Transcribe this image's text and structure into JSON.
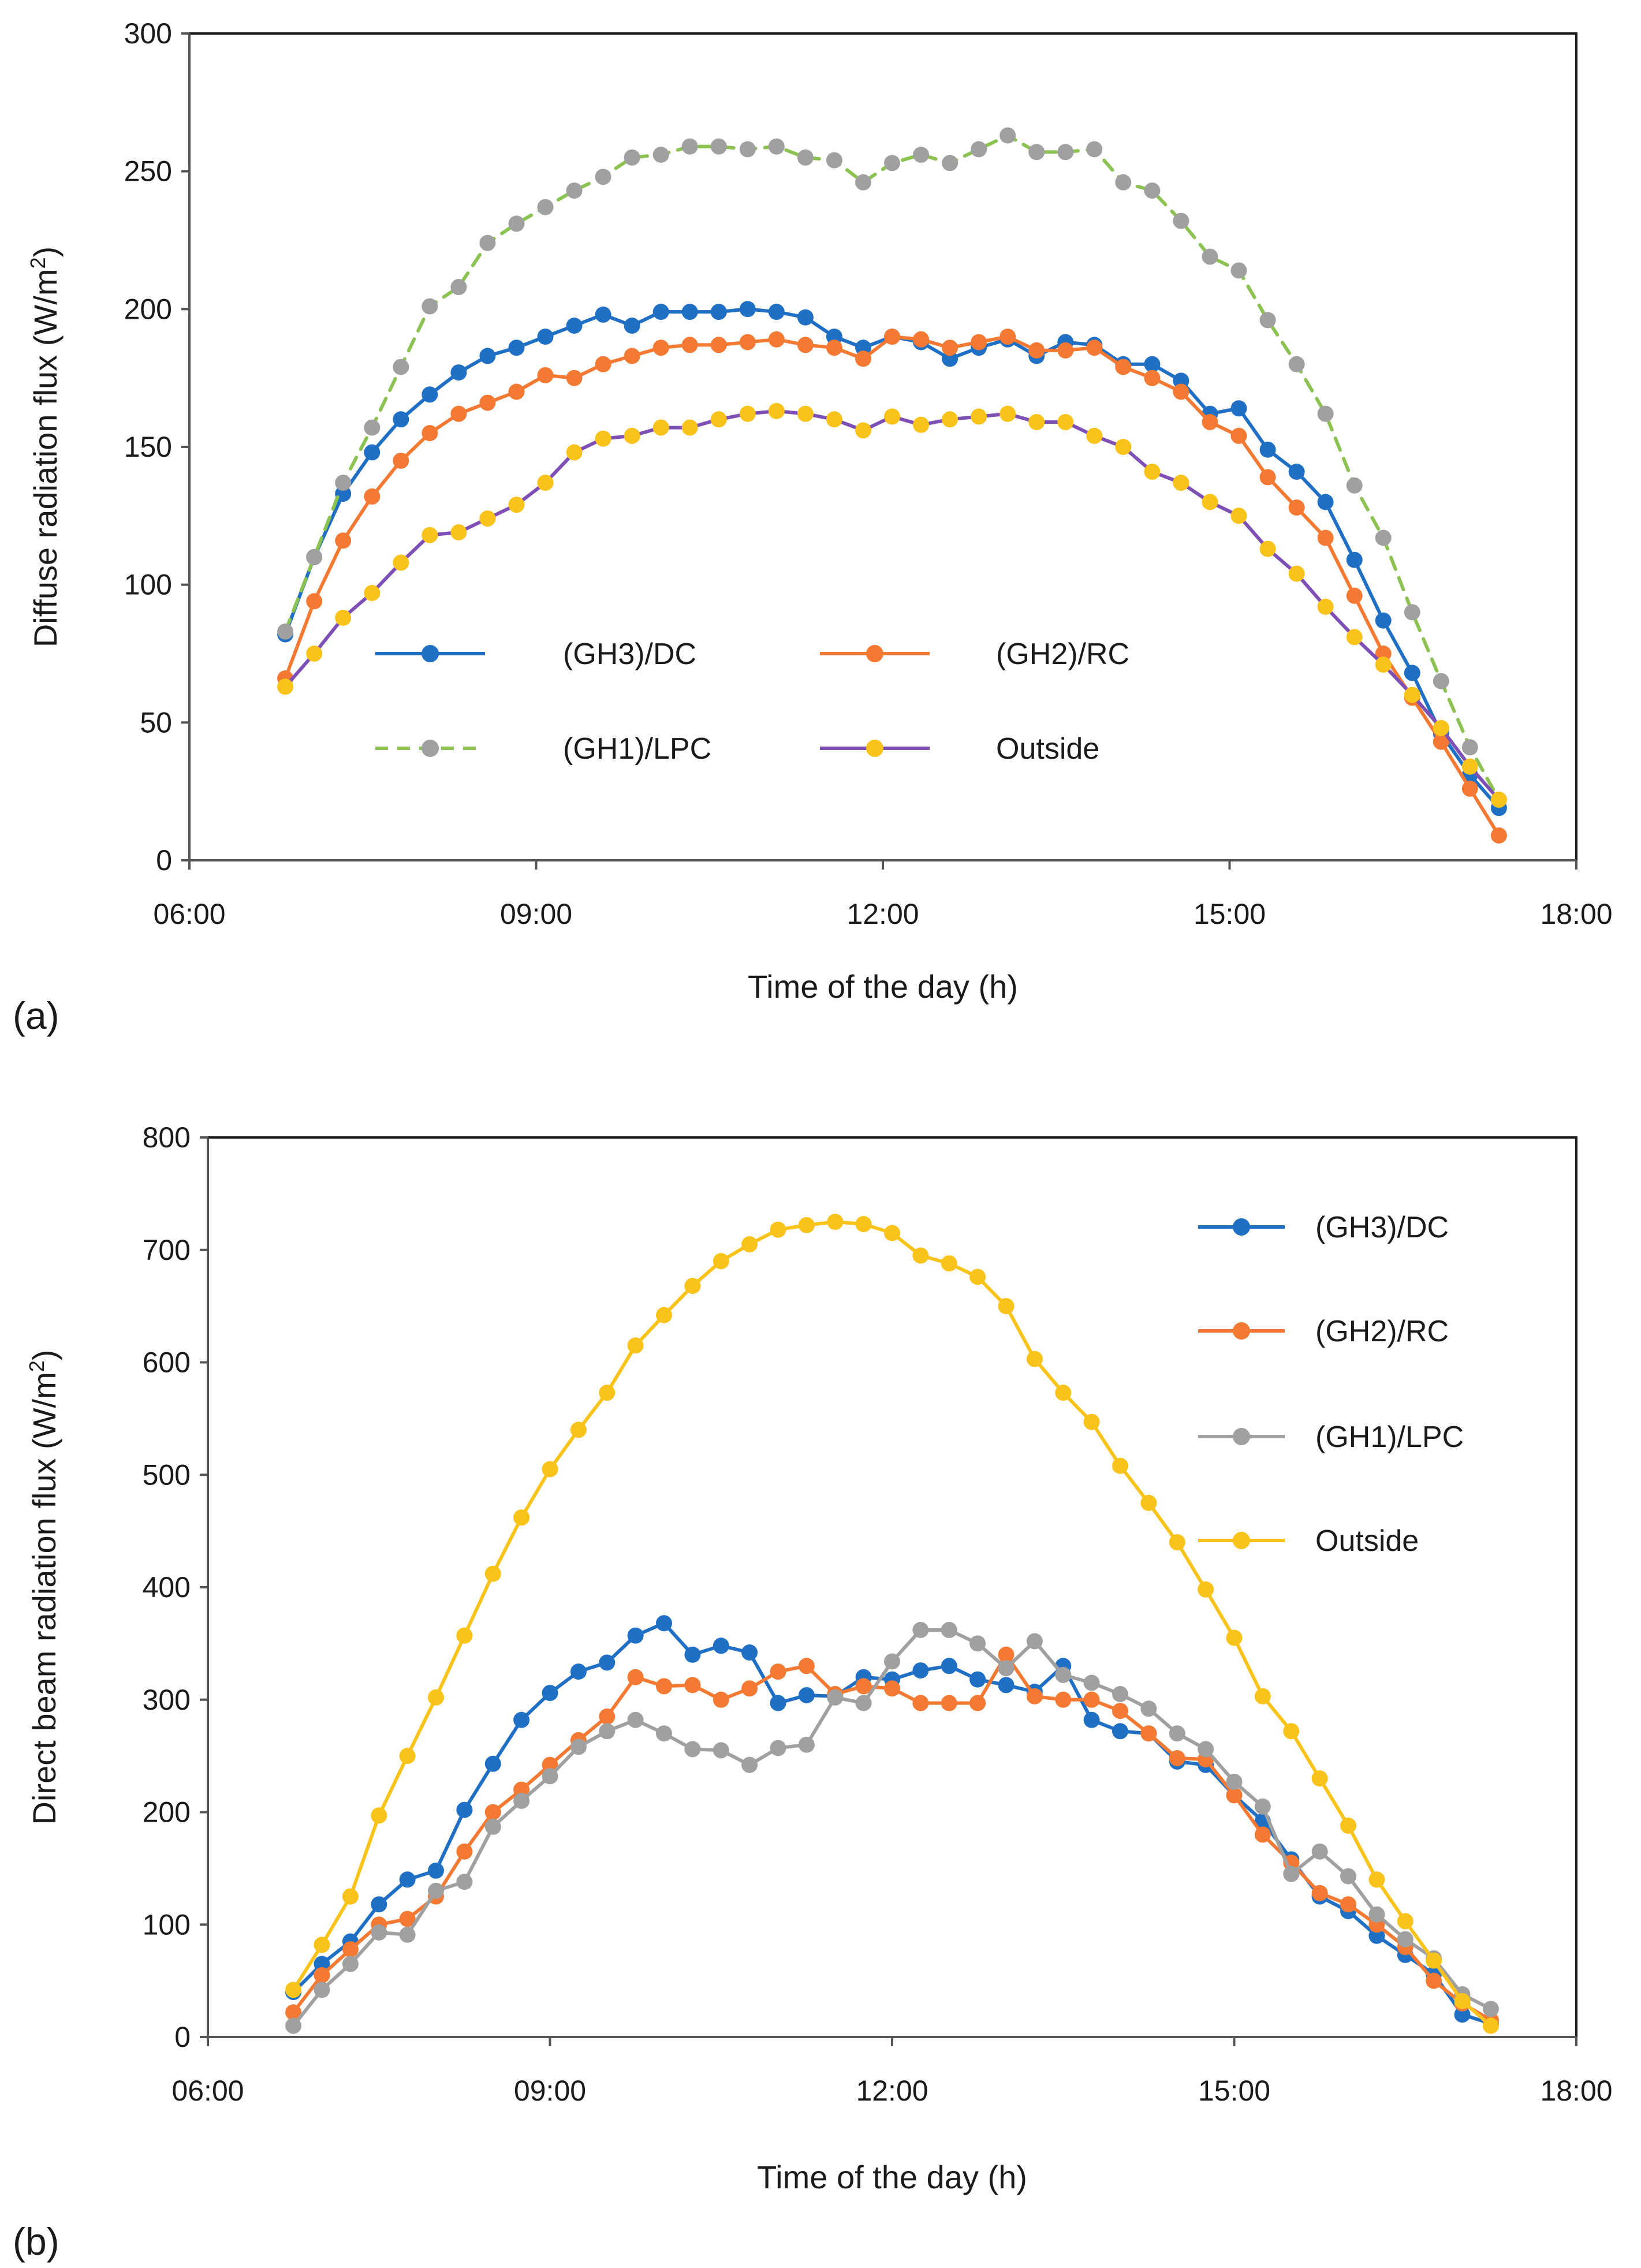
{
  "figure": {
    "panel_a_label": "(a)",
    "panel_b_label": "(b)"
  },
  "chart_data": [
    {
      "type": "line",
      "panel": "(a)",
      "title": "",
      "xlabel": "Time of the day (h)",
      "ylabel": "Diffuse radiation flux (W/m",
      "ylabel_sup": "2",
      "ylabel_end": ")",
      "xlim": [
        6,
        18
      ],
      "ylim": [
        0,
        300
      ],
      "xticks": [
        6,
        9,
        12,
        15,
        18
      ],
      "xtick_labels": [
        "06:00",
        "09:00",
        "12:00",
        "15:00",
        "18:00"
      ],
      "yticks": [
        0,
        50,
        100,
        150,
        200,
        250,
        300
      ],
      "ytick_labels": [
        "0",
        "50",
        "100",
        "150",
        "200",
        "250",
        "300"
      ],
      "grid": false,
      "legend_position": "inside-bottom, two columns",
      "x": [
        6.83,
        7.08,
        7.33,
        7.58,
        7.83,
        8.08,
        8.33,
        8.58,
        8.83,
        9.08,
        9.33,
        9.58,
        9.83,
        10.08,
        10.33,
        10.58,
        10.83,
        11.08,
        11.33,
        11.58,
        11.83,
        12.08,
        12.33,
        12.58,
        12.83,
        13.08,
        13.33,
        13.58,
        13.83,
        14.08,
        14.33,
        14.58,
        14.83,
        15.08,
        15.33,
        15.58,
        15.83,
        16.08,
        16.33,
        16.58,
        16.83,
        17.08,
        17.33
      ],
      "series": [
        {
          "name": "(GH3)/DC",
          "color": "#1f6fc5",
          "line_style": "solid",
          "values": [
            82,
            110,
            133,
            148,
            160,
            169,
            177,
            183,
            186,
            190,
            194,
            198,
            194,
            199,
            199,
            199,
            200,
            199,
            197,
            190,
            186,
            190,
            188,
            182,
            186,
            189,
            183,
            188,
            187,
            180,
            180,
            174,
            162,
            164,
            149,
            141,
            130,
            109,
            87,
            68,
            46,
            31,
            19
          ]
        },
        {
          "name": "(GH2)/RC",
          "color": "#f47a34",
          "line_style": "solid",
          "values": [
            66,
            94,
            116,
            132,
            145,
            155,
            162,
            166,
            170,
            176,
            175,
            180,
            183,
            186,
            187,
            187,
            188,
            189,
            187,
            186,
            182,
            190,
            189,
            186,
            188,
            190,
            185,
            185,
            186,
            179,
            175,
            170,
            159,
            154,
            139,
            128,
            117,
            96,
            75,
            59,
            43,
            26,
            9
          ]
        },
        {
          "name": "(GH1)/LPC",
          "color": "#8cc251",
          "marker_color": "#a0a0a0",
          "line_style": "dashed",
          "values": [
            83,
            110,
            137,
            157,
            179,
            201,
            208,
            224,
            231,
            237,
            243,
            248,
            255,
            256,
            259,
            259,
            258,
            259,
            255,
            254,
            246,
            253,
            256,
            253,
            258,
            263,
            257,
            257,
            258,
            246,
            243,
            232,
            219,
            214,
            196,
            180,
            162,
            136,
            117,
            90,
            65,
            41,
            22
          ]
        },
        {
          "name": "Outside",
          "color": "#7e4fb5",
          "marker_color": "#f9c31a",
          "line_style": "solid",
          "values": [
            63,
            75,
            88,
            97,
            108,
            118,
            119,
            124,
            129,
            137,
            148,
            153,
            154,
            157,
            157,
            160,
            162,
            163,
            162,
            160,
            156,
            161,
            158,
            160,
            161,
            162,
            159,
            159,
            154,
            150,
            141,
            137,
            130,
            125,
            113,
            104,
            92,
            81,
            71,
            60,
            48,
            34,
            22
          ]
        }
      ]
    },
    {
      "type": "line",
      "panel": "(b)",
      "title": "",
      "xlabel": "Time of the day (h)",
      "ylabel": "Direct beam radiation flux (W/m",
      "ylabel_sup": "2",
      "ylabel_end": ")",
      "xlim": [
        6,
        18
      ],
      "ylim": [
        0,
        800
      ],
      "xticks": [
        6,
        9,
        12,
        15,
        18
      ],
      "xtick_labels": [
        "06:00",
        "09:00",
        "12:00",
        "15:00",
        "18:00"
      ],
      "yticks": [
        0,
        100,
        200,
        300,
        400,
        500,
        600,
        700,
        800
      ],
      "ytick_labels": [
        "0",
        "100",
        "200",
        "300",
        "400",
        "500",
        "600",
        "700",
        "800"
      ],
      "grid": false,
      "legend_position": "inside top-right, single column",
      "x": [
        6.75,
        7.0,
        7.25,
        7.5,
        7.75,
        8.0,
        8.25,
        8.5,
        8.75,
        9.0,
        9.25,
        9.5,
        9.75,
        10.0,
        10.25,
        10.5,
        10.75,
        11.0,
        11.25,
        11.5,
        11.75,
        12.0,
        12.25,
        12.5,
        12.75,
        13.0,
        13.25,
        13.5,
        13.75,
        14.0,
        14.25,
        14.5,
        14.75,
        15.0,
        15.25,
        15.5,
        15.75,
        16.0,
        16.25,
        16.5,
        16.75,
        17.0,
        17.25
      ],
      "series": [
        {
          "name": "(GH3)/DC",
          "color": "#1f6fc5",
          "line_style": "solid",
          "values": [
            40,
            65,
            85,
            118,
            140,
            148,
            202,
            243,
            282,
            306,
            325,
            333,
            357,
            368,
            340,
            348,
            342,
            297,
            304,
            303,
            320,
            318,
            326,
            330,
            318,
            313,
            307,
            330,
            282,
            272,
            270,
            245,
            242,
            215,
            192,
            158,
            125,
            112,
            90,
            73,
            56,
            20,
            12
          ]
        },
        {
          "name": "(GH2)/RC",
          "color": "#f47a34",
          "line_style": "solid",
          "values": [
            22,
            55,
            78,
            100,
            105,
            125,
            165,
            200,
            220,
            242,
            264,
            285,
            320,
            312,
            313,
            300,
            310,
            325,
            330,
            305,
            312,
            310,
            297,
            297,
            297,
            340,
            303,
            300,
            300,
            290,
            270,
            248,
            247,
            215,
            180,
            155,
            128,
            118,
            100,
            80,
            50,
            30,
            15
          ]
        },
        {
          "name": "(GH1)/LPC",
          "color": "#a0a0a0",
          "line_style": "solid",
          "values": [
            10,
            42,
            65,
            93,
            91,
            130,
            138,
            187,
            210,
            232,
            258,
            272,
            282,
            270,
            256,
            255,
            242,
            257,
            260,
            302,
            297,
            334,
            362,
            362,
            350,
            328,
            352,
            322,
            315,
            305,
            292,
            270,
            256,
            227,
            205,
            145,
            165,
            143,
            109,
            87,
            70,
            38,
            25
          ]
        },
        {
          "name": "Outside",
          "color": "#f9c31a",
          "line_style": "solid",
          "values": [
            42,
            82,
            125,
            197,
            250,
            302,
            357,
            412,
            462,
            505,
            540,
            573,
            615,
            642,
            668,
            690,
            705,
            718,
            722,
            725,
            723,
            715,
            695,
            688,
            676,
            650,
            603,
            573,
            547,
            508,
            475,
            440,
            398,
            355,
            303,
            272,
            230,
            188,
            140,
            103,
            68,
            32,
            10
          ]
        }
      ]
    }
  ]
}
